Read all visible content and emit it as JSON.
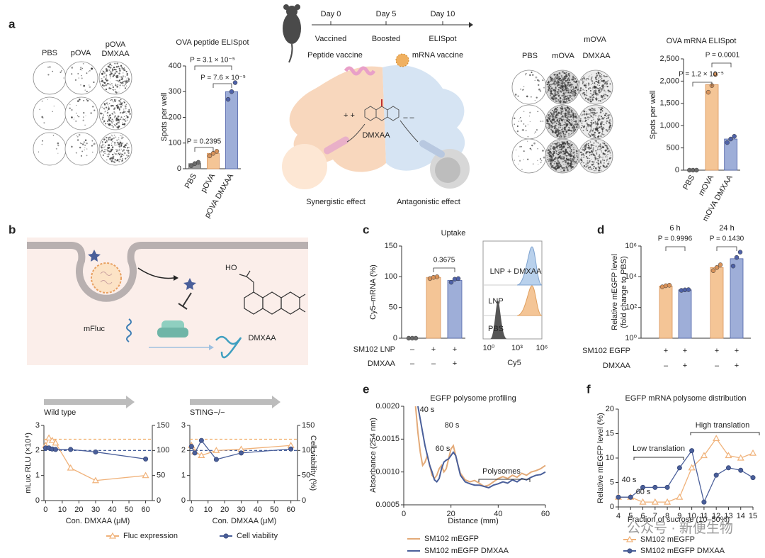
{
  "panel_labels": [
    "a",
    "b",
    "c",
    "d",
    "e",
    "f"
  ],
  "elispot_peptide": {
    "columns": [
      "PBS",
      "pOVA",
      "pOVA DMXAA"
    ]
  },
  "timeline": {
    "days": [
      "Day 0",
      "Day 5",
      "Day 10"
    ],
    "events": [
      "Vaccined",
      "Boosted",
      "ELISpot"
    ]
  },
  "mechanism": {
    "left": "Peptide vaccine",
    "right": "mRNA vaccine",
    "plus": "+ +",
    "minus": "– –",
    "drug": "DMXAA",
    "left_effect": "Synergistic effect",
    "right_effect": "Antagonistic effect"
  },
  "elispot_mrna": {
    "header": "mOVA",
    "columns": [
      "PBS",
      "mOVA",
      "DMXAA"
    ]
  },
  "translation_diagram": {
    "hydroxyl": "HO",
    "drug": "DMXAA",
    "reporter": "mFluc"
  },
  "flow": {
    "tracks": [
      "LNP + DMXAA",
      "LNP",
      "PBS"
    ],
    "xticks": [
      "10⁰",
      "10³",
      "10⁶"
    ],
    "xlabel": "Cy5"
  },
  "watermark": "公众号 · 新便生物",
  "chart_data": [
    {
      "type": "bar",
      "title": "OVA peptide ELISpot",
      "ylabel": "Spots per well",
      "categories": [
        "PBS",
        "pOVA",
        "pOVA DMXAA"
      ],
      "values": [
        20,
        60,
        300
      ],
      "colors": [
        "#9a9a9a",
        "#f4c596",
        "#9eaed8"
      ],
      "point_colors": [
        "#6b6b6b",
        "#d9935a",
        "#4f62a8"
      ],
      "points": [
        [
          12,
          20,
          25
        ],
        [
          50,
          60,
          68
        ],
        [
          270,
          300,
          335
        ]
      ],
      "ylim": [
        0,
        400
      ],
      "yticks": [
        0,
        100,
        200,
        300,
        400
      ],
      "annotations": [
        "P = 3.1 × 10⁻⁵",
        "P = 7.6 × 10⁻⁵",
        "P = 0.2395"
      ]
    },
    {
      "type": "bar",
      "title": "OVA mRNA ELISpot",
      "ylabel": "Spots per well",
      "categories": [
        "PBS",
        "mOVA",
        "mOVA DMXAA"
      ],
      "values": [
        0,
        1920,
        700
      ],
      "colors": [
        "#9a9a9a",
        "#f4c596",
        "#9eaed8"
      ],
      "point_colors": [
        "#6b6b6b",
        "#d9935a",
        "#4f62a8"
      ],
      "points": [
        [
          0,
          0,
          0
        ],
        [
          1750,
          1900,
          2150
        ],
        [
          620,
          700,
          760
        ]
      ],
      "ylim": [
        0,
        2500
      ],
      "yticks": [
        0,
        500,
        {
          "value": 1000,
          "label": "1,000"
        },
        {
          "value": 1500,
          "label": "1,500"
        },
        {
          "value": 2000,
          "label": "2,000"
        },
        {
          "value": 2500,
          "label": "2,500"
        }
      ],
      "annotations": [
        "P = 1.2 × 10⁻⁵",
        "P = 0.0001"
      ]
    },
    {
      "type": "line",
      "title": "Wild type",
      "ylabel": "mLuc RLU (×10⁴)",
      "xlabel": "Con. DMXAA (μM)",
      "xlim": [
        -1,
        64
      ],
      "xticks": [
        0,
        10,
        20,
        30,
        40,
        50,
        60
      ],
      "ylim": [
        0,
        3
      ],
      "yticks": [
        0,
        1,
        2,
        3
      ],
      "y2lim": [
        0,
        150
      ],
      "y2ticks": [
        0,
        50,
        100,
        150
      ],
      "reference_lines": [
        {
          "axis": "y",
          "value": 2.45,
          "color": "#f0a860"
        },
        {
          "axis": "y2",
          "value": 100,
          "color": "#2e4a8c"
        }
      ],
      "series": [
        {
          "name": "Fluc expression",
          "color": "#f0b27a",
          "marker": "triangle",
          "x": [
            0,
            2,
            4,
            6,
            15,
            30,
            60
          ],
          "values": [
            2.2,
            2.5,
            2.4,
            2.3,
            1.3,
            0.8,
            1.0
          ]
        },
        {
          "name": "Cell viability",
          "color": "#4a5f9a",
          "marker": "circle",
          "axis": "y2",
          "x": [
            0,
            2,
            4,
            6,
            15,
            30,
            60
          ],
          "values": [
            105,
            105,
            103,
            102,
            102,
            97,
            83
          ]
        }
      ]
    },
    {
      "type": "line",
      "title": "STING−/−",
      "y2label": "Cell viability (%)",
      "xlabel": "Con. DMXAA (μM)",
      "xlim": [
        -1,
        64
      ],
      "xticks": [
        0,
        10,
        20,
        30,
        40,
        50,
        60
      ],
      "ylim": [
        0,
        3
      ],
      "yticks": [
        0,
        1,
        2,
        3
      ],
      "y2lim": [
        0,
        150
      ],
      "y2ticks": [
        0,
        50,
        100,
        150
      ],
      "reference_lines": [
        {
          "axis": "y",
          "value": 2.45,
          "color": "#f0a860"
        },
        {
          "axis": "y2",
          "value": 100,
          "color": "#2e4a8c"
        }
      ],
      "series": [
        {
          "color": "#f0b27a",
          "marker": "triangle",
          "x": [
            0,
            2,
            6,
            15,
            30,
            60
          ],
          "values": [
            2.2,
            1.95,
            1.8,
            2.0,
            2.05,
            2.2
          ]
        },
        {
          "color": "#4a5f9a",
          "marker": "circle",
          "axis": "y2",
          "x": [
            0,
            2,
            6,
            15,
            30,
            60
          ],
          "values": [
            108,
            95,
            120,
            82,
            95,
            103
          ]
        }
      ]
    },
    {
      "type": "bar",
      "title": "Uptake",
      "ylabel": "Cy5–mRNA (%)",
      "categories": [
        null,
        null,
        null
      ],
      "values": [
        0,
        99,
        94
      ],
      "colors": [
        "#9a9a9a",
        "#f4c596",
        "#9eaed8"
      ],
      "point_colors": [
        "#6b6b6b",
        "#d9935a",
        "#4f62a8"
      ],
      "points": [
        [
          0,
          0,
          0
        ],
        [
          97,
          99,
          100
        ],
        [
          91,
          96,
          97
        ]
      ],
      "ylim": [
        0,
        150
      ],
      "yticks": [
        0,
        50,
        100,
        150
      ],
      "annotations": [
        "0.3675"
      ],
      "conditions": [
        {
          "label": "SM102 LNP",
          "signs": [
            "–",
            "+",
            "+"
          ]
        },
        {
          "label": "DMXAA",
          "signs": [
            "–",
            "–",
            "+"
          ]
        }
      ]
    },
    {
      "type": "bar",
      "log_scale": true,
      "ylabel": "Relative mEGFP level",
      "ylabel_sub": "(fold change to PBS)",
      "headers": [
        "6 h",
        "24 h"
      ],
      "categories": [
        null,
        null,
        null,
        null
      ],
      "values": [
        2500,
        1400,
        40000,
        150000
      ],
      "colors": [
        "#f4c596",
        "#9eaed8",
        "#f4c596",
        "#9eaed8"
      ],
      "point_colors": [
        "#d9935a",
        "#4f62a8",
        "#d9935a",
        "#4f62a8"
      ],
      "points": [
        [
          2200,
          2600,
          2800
        ],
        [
          1300,
          1400,
          1450
        ],
        [
          25000,
          40000,
          60000
        ],
        [
          50000,
          180000,
          400000
        ]
      ],
      "ylim": [
        1,
        1000000
      ],
      "yticks": [
        {
          "value": 1,
          "label": "10⁰"
        },
        {
          "value": 100,
          "label": "10²"
        },
        {
          "value": 10000,
          "label": "10⁴"
        },
        {
          "value": 1000000,
          "label": "10⁶"
        }
      ],
      "annotations": [
        "P = 0.9996",
        "P = 0.1430"
      ],
      "conditions": [
        {
          "label": "SM102 EGFP",
          "signs": [
            "+",
            "+",
            "+",
            "+"
          ]
        },
        {
          "label": "DMXAA",
          "signs": [
            "–",
            "+",
            "–",
            "+"
          ]
        }
      ]
    },
    {
      "type": "line",
      "title": "EGFP polysome profiling",
      "ylabel": "Absorbance (254 nm)",
      "xlabel": "Distance (mm)",
      "xlim": [
        0,
        60
      ],
      "xticks": [
        0,
        20,
        40,
        60
      ],
      "ylim": [
        0.0005,
        0.002
      ],
      "yticks": [
        0.0005,
        {
          "value": 0.001,
          "label": "0.0010"
        },
        0.0015,
        {
          "value": 0.002,
          "label": "0.0020"
        }
      ],
      "annotations": [
        "40 s",
        "80 s",
        "60 s",
        "Polysomes"
      ],
      "series": [
        {
          "name": "SM102 mEGFP",
          "color": "#e3aa78",
          "x": [
            5,
            6,
            7,
            8,
            9,
            10,
            11,
            12,
            13,
            14,
            15,
            16,
            17,
            18,
            19,
            20,
            21,
            22,
            23,
            24,
            26,
            28,
            30,
            32,
            34,
            36,
            38,
            40,
            42,
            44,
            46,
            48,
            50,
            52,
            54,
            56,
            58,
            60
          ],
          "values": [
            0.002,
            0.0016,
            0.0013,
            0.0011,
            0.00115,
            0.00125,
            0.0011,
            0.00095,
            0.0009,
            0.00095,
            0.00105,
            0.0011,
            0.001,
            0.00105,
            0.0012,
            0.00135,
            0.0014,
            0.00125,
            0.0011,
            0.00098,
            0.00088,
            0.00085,
            0.00087,
            0.00083,
            0.00078,
            0.0008,
            0.00085,
            0.0009,
            0.00093,
            0.0009,
            0.00095,
            0.00092,
            0.00098,
            0.00095,
            0.001,
            0.00102,
            0.00105,
            0.0011
          ]
        },
        {
          "name": "SM102 mEGFP DMXAA",
          "color": "#4a5f9a",
          "x": [
            6,
            7,
            8,
            9,
            10,
            11,
            12,
            13,
            14,
            15,
            16,
            17,
            18,
            19,
            20,
            21,
            22,
            23,
            24,
            26,
            28,
            30,
            32,
            34,
            36,
            38,
            40,
            42,
            44,
            46,
            48,
            50,
            52,
            54,
            56,
            58,
            60
          ],
          "values": [
            0.002,
            0.0018,
            0.0016,
            0.0014,
            0.00125,
            0.0011,
            0.001,
            0.00088,
            0.00085,
            0.0009,
            0.00105,
            0.00115,
            0.00118,
            0.0012,
            0.00125,
            0.0013,
            0.00125,
            0.0011,
            0.00095,
            0.00085,
            0.00082,
            0.0008,
            0.0008,
            0.00078,
            0.00076,
            0.0008,
            0.00082,
            0.00085,
            0.00083,
            0.00088,
            0.00085,
            0.0009,
            0.00088,
            0.00092,
            0.00095,
            0.00096,
            0.001
          ]
        }
      ]
    },
    {
      "type": "line",
      "title": "EGFP mRNA polysome distribution",
      "ylabel": "Relative mEGFP level (%)",
      "xlabel": "Fraction of sucrose (10–50%)",
      "xlim": [
        4,
        15
      ],
      "xticks": [
        4,
        5,
        6,
        7,
        8,
        9,
        10,
        11,
        12,
        13,
        14,
        15
      ],
      "ylim": [
        0,
        20
      ],
      "yticks": [
        0,
        5,
        10,
        15,
        20
      ],
      "annotations": [
        "40 s",
        "60 s",
        "Low translation",
        "High translation"
      ],
      "series": [
        {
          "name": "SM102 mEGFP",
          "color": "#f0b27a",
          "marker": "triangle",
          "x": [
            4,
            5,
            6,
            7,
            8,
            9,
            10,
            11,
            12,
            13,
            14,
            15
          ],
          "values": [
            2,
            2,
            1,
            1,
            1,
            2,
            8,
            10.5,
            14,
            10.5,
            10,
            11
          ]
        },
        {
          "name": "SM102 mEGFP DMXAA",
          "color": "#4a5f9a",
          "marker": "circle",
          "x": [
            4,
            5,
            6,
            7,
            8,
            9,
            10,
            11,
            12,
            13,
            14,
            15
          ],
          "values": [
            2,
            2,
            4,
            4,
            4,
            8,
            11.5,
            1,
            6.5,
            8,
            7.5,
            6
          ]
        }
      ]
    }
  ]
}
